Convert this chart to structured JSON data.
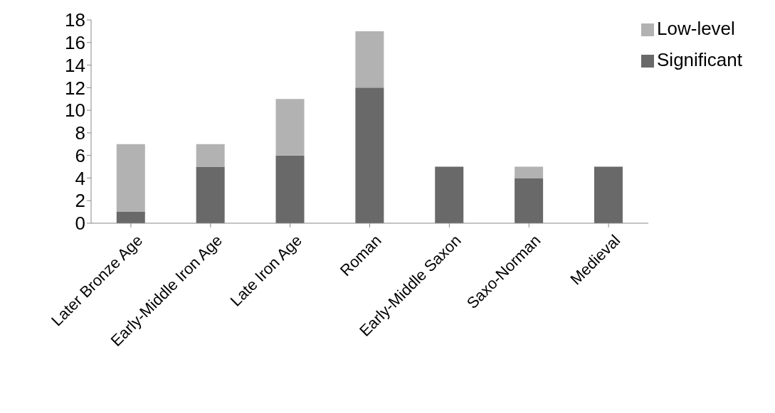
{
  "chart_data": {
    "type": "bar",
    "stacked": true,
    "categories": [
      "Later Bronze Age",
      "Early-Middle Iron Age",
      "Late Iron Age",
      "Roman",
      "Early-Middle Saxon",
      "Saxo-Norman",
      "Medieval"
    ],
    "series": [
      {
        "name": "Significant",
        "color": "#696969",
        "values": [
          1,
          5,
          6,
          12,
          5,
          4,
          5
        ]
      },
      {
        "name": "Low-level",
        "color": "#b2b2b2",
        "values": [
          6,
          2,
          5,
          5,
          0,
          1,
          0
        ]
      }
    ],
    "ylim": [
      0,
      18
    ],
    "yticks": [
      0,
      2,
      4,
      6,
      8,
      10,
      12,
      14,
      16,
      18
    ],
    "grid": false,
    "legend": "top right"
  }
}
